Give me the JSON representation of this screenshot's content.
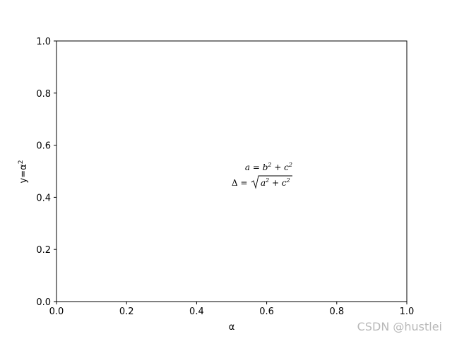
{
  "chart_data": {
    "type": "scatter",
    "xlabel": "α",
    "ylabel": "y=α",
    "ylabel_exponent": "2",
    "xlim": [
      0.0,
      1.0
    ],
    "ylim": [
      0.0,
      1.0
    ],
    "x_ticks": [
      "0.0",
      "0.2",
      "0.4",
      "0.6",
      "0.8",
      "1.0"
    ],
    "y_ticks": [
      "0.0",
      "0.2",
      "0.4",
      "0.6",
      "0.8",
      "1.0"
    ],
    "grid": false,
    "series": [],
    "annotations": [
      {
        "x": 0.6,
        "y": 0.5,
        "line1": "a = b² + c²",
        "line2": "Δ = √(a² + c²)"
      }
    ]
  },
  "watermark": "CSDN @hustlei"
}
